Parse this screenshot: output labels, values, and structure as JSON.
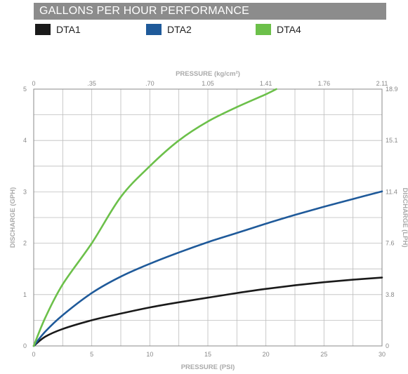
{
  "header": {
    "title": "GALLONS PER HOUR PERFORMANCE"
  },
  "legend": [
    {
      "label": "DTA1",
      "color": "#1a1a1a"
    },
    {
      "label": "DTA2",
      "color": "#1f5a9a"
    },
    {
      "label": "DTA4",
      "color": "#6cc04a"
    }
  ],
  "chart_data": {
    "type": "line",
    "title": "GALLONS PER HOUR PERFORMANCE",
    "xlabel": "PRESSURE (PSI)",
    "ylabel": "DISCHARGE (GPH)",
    "x2label": "PRESSURE (kg/cm²)",
    "y2label": "DISCHARGE (LPH)",
    "xlim": [
      0,
      30
    ],
    "ylim": [
      0,
      5
    ],
    "x_ticks": [
      0,
      5,
      10,
      15,
      20,
      25,
      30
    ],
    "y_ticks": [
      0,
      1,
      2,
      3,
      4,
      5
    ],
    "x2_ticks": [
      {
        "at": 0,
        "label": "0"
      },
      {
        "at": 5,
        "label": ".35"
      },
      {
        "at": 10,
        "label": ".70"
      },
      {
        "at": 15,
        "label": "1.05"
      },
      {
        "at": 20,
        "label": "1.41"
      },
      {
        "at": 25,
        "label": "1.76"
      },
      {
        "at": 30,
        "label": "2.11"
      }
    ],
    "y2_ticks": [
      {
        "at": 0,
        "label": "0"
      },
      {
        "at": 1,
        "label": "3.8"
      },
      {
        "at": 2,
        "label": "7.6"
      },
      {
        "at": 3,
        "label": "11.4"
      },
      {
        "at": 4,
        "label": "15.1"
      },
      {
        "at": 5,
        "label": "18.9"
      }
    ],
    "grid": true,
    "series": [
      {
        "name": "DTA1",
        "color": "#1a1a1a",
        "x": [
          0,
          1,
          2.5,
          5,
          7.5,
          10,
          12.5,
          15,
          17.5,
          20,
          22.5,
          25,
          27.5,
          30
        ],
        "y": [
          0,
          0.18,
          0.33,
          0.5,
          0.63,
          0.75,
          0.85,
          0.94,
          1.03,
          1.11,
          1.18,
          1.24,
          1.29,
          1.33
        ]
      },
      {
        "name": "DTA2",
        "color": "#1f5a9a",
        "x": [
          0,
          1,
          2.5,
          5,
          7.5,
          10,
          12.5,
          15,
          17.5,
          20,
          22.5,
          25,
          27.5,
          30
        ],
        "y": [
          0,
          0.28,
          0.6,
          1.03,
          1.35,
          1.6,
          1.82,
          2.02,
          2.2,
          2.38,
          2.55,
          2.71,
          2.86,
          3.01
        ]
      },
      {
        "name": "DTA4",
        "color": "#6cc04a",
        "x": [
          0,
          1,
          2.5,
          5,
          7.5,
          10,
          12.5,
          15,
          17.5,
          20,
          20.9
        ],
        "y": [
          0,
          0.55,
          1.2,
          2.0,
          2.9,
          3.5,
          4.0,
          4.37,
          4.65,
          4.9,
          5.0
        ]
      }
    ]
  }
}
